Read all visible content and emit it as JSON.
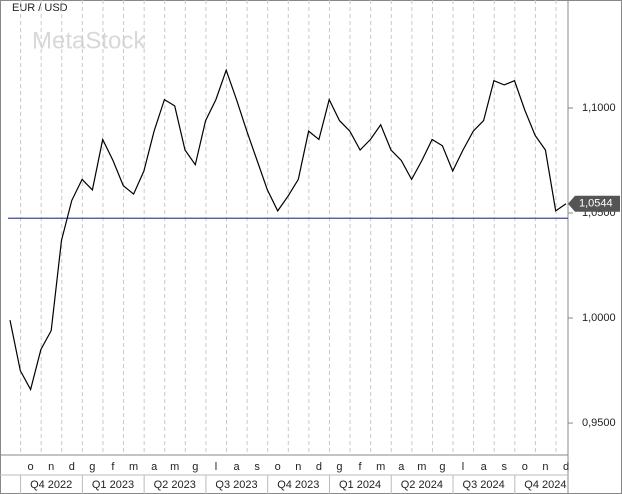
{
  "chart_data": {
    "type": "line",
    "title": "EUR / USD",
    "watermark": "MetaStock",
    "categories": [
      null,
      null,
      "o",
      null,
      "n",
      null,
      "d",
      null,
      "g",
      null,
      "f",
      null,
      "m",
      null,
      "a",
      null,
      "m",
      null,
      "g",
      null,
      "l",
      null,
      "a",
      null,
      "s",
      null,
      "o",
      null,
      "n",
      null,
      "d",
      null,
      "g",
      null,
      "f",
      null,
      "m",
      null,
      "a",
      null,
      "m",
      null,
      "g",
      null,
      "l",
      null,
      "a",
      null,
      "s",
      null,
      "o",
      null,
      "n",
      null,
      "d"
    ],
    "quarters": [
      "Q4 2022",
      "Q1 2023",
      "Q2 2023",
      "Q3 2023",
      "Q4 2023",
      "Q1 2024",
      "Q2 2024",
      "Q3 2024",
      "Q4 2024"
    ],
    "series": [
      {
        "name": "EUR / USD",
        "color": "#000000",
        "values": [
          0.999,
          0.975,
          0.966,
          0.985,
          0.994,
          1.037,
          1.056,
          1.066,
          1.061,
          1.085,
          1.075,
          1.063,
          1.059,
          1.07,
          1.089,
          1.104,
          1.101,
          1.08,
          1.073,
          1.094,
          1.104,
          1.118,
          1.104,
          1.089,
          1.075,
          1.061,
          1.051,
          1.058,
          1.066,
          1.089,
          1.085,
          1.104,
          1.094,
          1.089,
          1.08,
          1.085,
          1.092,
          1.08,
          1.075,
          1.066,
          1.075,
          1.085,
          1.082,
          1.07,
          1.08,
          1.089,
          1.094,
          1.113,
          1.111,
          1.113,
          1.099,
          1.087,
          1.08,
          1.051,
          1.0544
        ]
      }
    ],
    "last_value": {
      "value": 1.0544,
      "label": "1,0544"
    },
    "reference_line": {
      "value": 1.0475,
      "color": "#3b4a9c"
    },
    "ylim": [
      0.9348,
      1.1514
    ],
    "yticks": [
      {
        "value": 0.95,
        "label": "0,9500"
      },
      {
        "value": 1.0,
        "label": "1,0000"
      },
      {
        "value": 1.05,
        "label": "1,0500"
      },
      {
        "value": 1.1,
        "label": "1,1000"
      }
    ],
    "grid": true
  }
}
